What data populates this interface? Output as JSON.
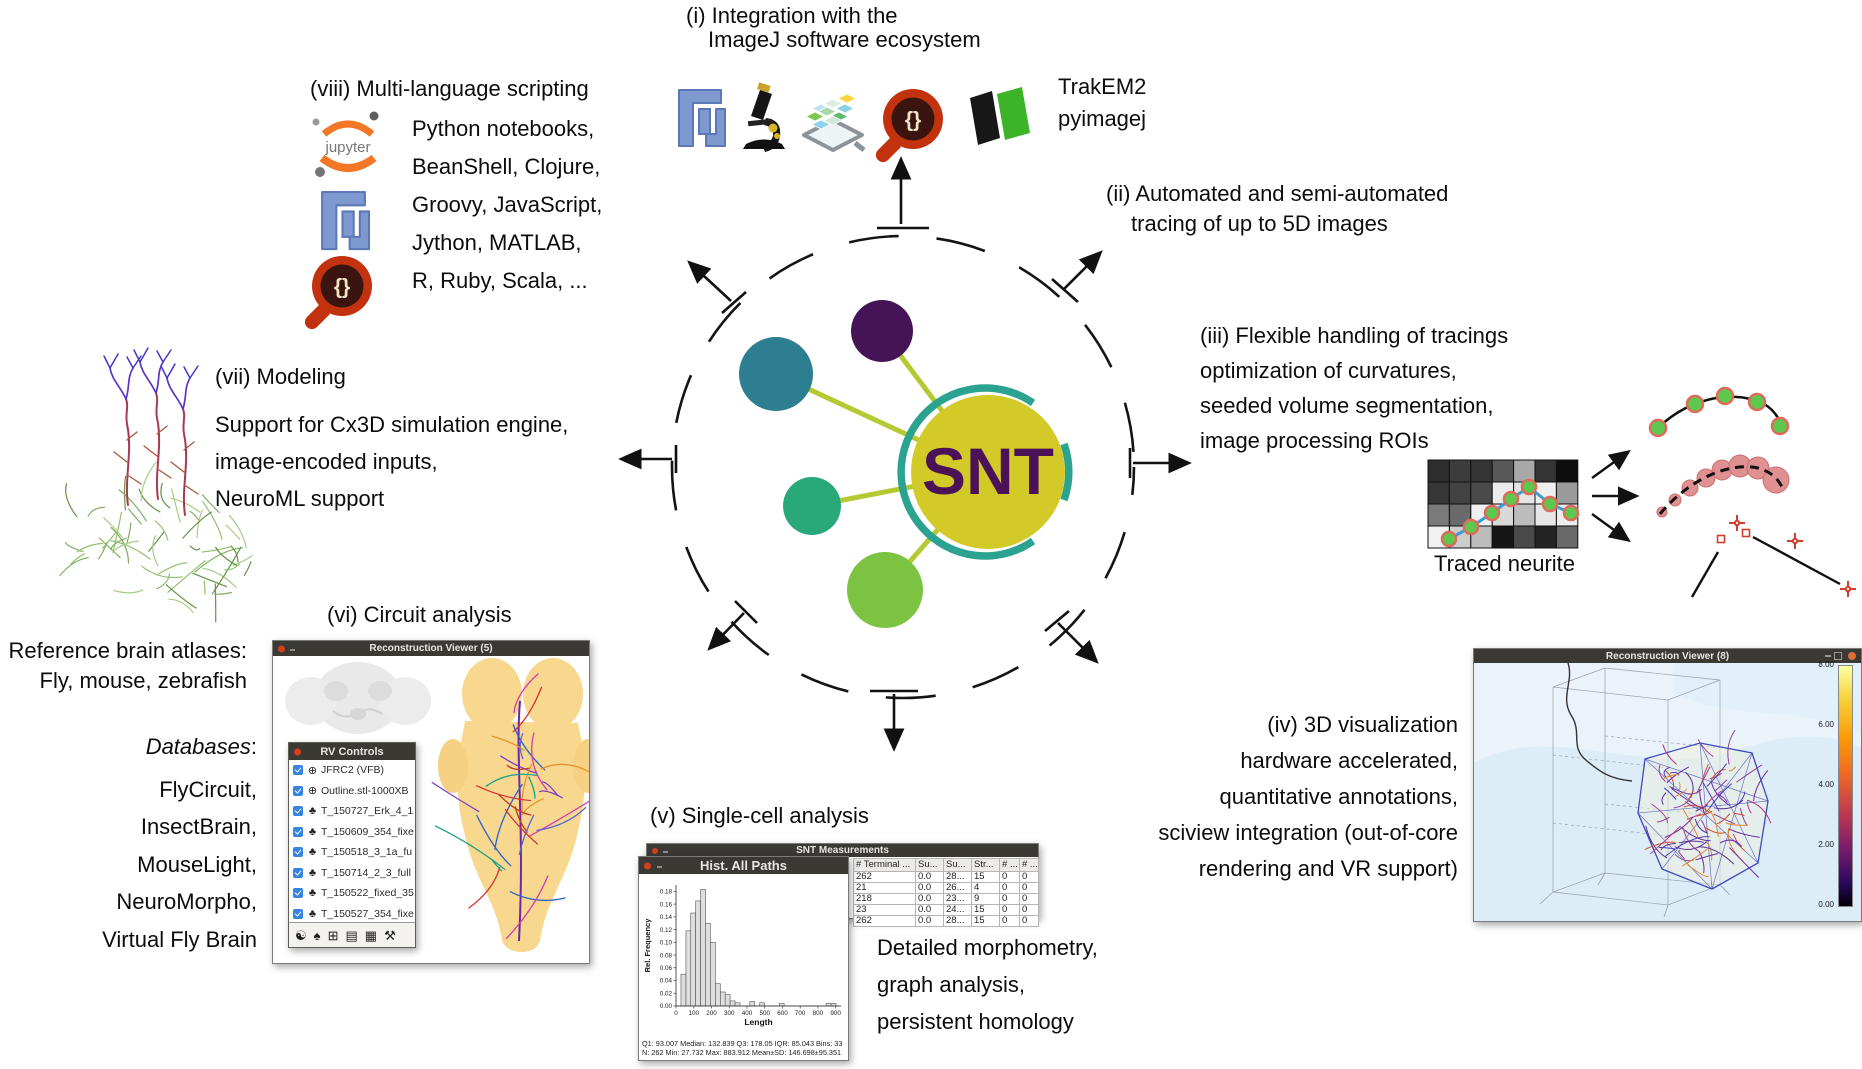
{
  "glyphs": {
    "script_braces": "{}"
  },
  "figure": {
    "center_label": "SNT",
    "i": {
      "line1": "(i) Integration with the",
      "line2": "ImageJ software ecosystem",
      "right_label1": "TrakEM2",
      "right_label2": "pyimagej"
    },
    "ii": {
      "line1": "(ii) Automated and semi-automated",
      "line2": "tracing of up to 5D images"
    },
    "iii": {
      "lines": [
        "(iii) Flexible handling of tracings",
        "optimization of curvatures,",
        "seeded volume segmentation,",
        "image processing ROIs"
      ],
      "caption": "Traced neurite",
      "grid_shades": [
        [
          "#2e2e2e",
          "#3c3c3c",
          "#343434",
          "#585858",
          "#a8a8a8",
          "#343434",
          "#0d0d0d"
        ],
        [
          "#363636",
          "#424242",
          "#4a4a4a",
          "#ececec",
          "#e4e4e4",
          "#efefef",
          "#9a9a9a"
        ],
        [
          "#7a7a7a",
          "#6a6a6a",
          "#f0f0f0",
          "#d8d8d8",
          "#bcbcbc",
          "#e6e6e6",
          "#ededed"
        ],
        [
          "#f1f1f1",
          "#cdcdcd",
          "#bcbcbc",
          "#161616",
          "#4a4a4a",
          "#242424",
          "#6a6a6a"
        ]
      ]
    },
    "iv": {
      "lines": [
        "(iv) 3D visualization",
        "hardware accelerated,",
        "quantitative annotations,",
        "sciview integration (out-of-core",
        "rendering and VR support)"
      ]
    },
    "v": {
      "title": "(v) Single-cell analysis",
      "lines": [
        "Detailed morphometry,",
        "graph analysis,",
        "persistent homology"
      ]
    },
    "vi": {
      "title": "(vi) Circuit analysis",
      "atlases": [
        "Reference brain atlases:",
        "Fly, mouse, zebrafish"
      ],
      "databases_label": "Databases",
      "databases_colon": ":",
      "databases": [
        "FlyCircuit,",
        "InsectBrain,",
        "MouseLight,",
        "NeuroMorpho,",
        "Virtual Fly Brain"
      ]
    },
    "vii": {
      "title": "(vii) Modeling",
      "lines": [
        "Support for Cx3D simulation engine,",
        "image-encoded inputs,",
        "NeuroML support"
      ]
    },
    "viii": {
      "title": "(viii) Multi-language scripting",
      "jupyter_label": "jupyter",
      "languages": [
        "Python notebooks,",
        "BeanShell, Clojure,",
        "Groovy, JavaScript,",
        "Jython, MATLAB,",
        "R, Ruby, Scala, ..."
      ]
    }
  },
  "windows": {
    "reconstruction_viewer_5": {
      "title": "Reconstruction Viewer (5)"
    },
    "rv_controls": {
      "title": "RV Controls",
      "items": [
        {
          "icon": "globe-icon",
          "label": "JFRC2 (VFB)",
          "checked": true
        },
        {
          "icon": "globe-icon",
          "label": "Outline.stl-1000XB",
          "checked": true
        },
        {
          "icon": "tree-icon",
          "label": "T_150727_Erk_4_1",
          "checked": true
        },
        {
          "icon": "tree-icon",
          "label": "T_150609_354_fixe",
          "checked": true
        },
        {
          "icon": "tree-icon",
          "label": "T_150518_3_1a_fu",
          "checked": true
        },
        {
          "icon": "tree-icon",
          "label": "T_150714_2_3_full",
          "checked": true
        },
        {
          "icon": "tree-icon",
          "label": "T_150522_fixed_35",
          "checked": true
        },
        {
          "icon": "tree-icon",
          "label": "T_150527_354_fixe",
          "checked": true
        }
      ],
      "toolbar_icons": [
        "masks-icon",
        "tree-icon",
        "box-icon",
        "stack-icon",
        "grid-icon",
        "wrench-icon"
      ]
    },
    "snt_measurements": {
      "title": "SNT Measurements",
      "columns": [
        "# Terminal ...",
        "Su...",
        "Su...",
        "Str...",
        "# ...",
        "# ..."
      ],
      "rows": [
        [
          "262",
          "0.0",
          "28...",
          "15",
          "0",
          "0"
        ],
        [
          "21",
          "0.0",
          "26...",
          "4",
          "0",
          "0"
        ],
        [
          "218",
          "0.0",
          "23...",
          "9",
          "0",
          "0"
        ],
        [
          "23",
          "0.0",
          "24...",
          "15",
          "0",
          "0"
        ],
        [
          "262",
          "0.0",
          "28...",
          "15",
          "0",
          "0"
        ]
      ]
    },
    "hist_all_paths": {
      "title": "Hist. All Paths",
      "footer_line1": "Q1: 93.007  Median: 132.839  Q3: 178.05  IQR: 85.043  Bins: 33",
      "footer_line2": "N: 262  Min: 27.732  Max: 883.912  Mean±SD: 146.698±95.351"
    },
    "reconstruction_viewer_8": {
      "title": "Reconstruction Viewer (8)",
      "colorbar_labels": [
        "8.00",
        "6.00",
        "4.00",
        "2.00",
        "0.00"
      ]
    }
  },
  "chart_data": {
    "type": "bar",
    "title": "Hist. All Paths",
    "xlabel": "Length",
    "ylabel": "Rel. Frequency",
    "xlim": [
      0,
      930
    ],
    "ylim": [
      0,
      0.19
    ],
    "xticks": [
      0,
      100,
      200,
      300,
      400,
      500,
      600,
      700,
      800,
      900
    ],
    "yticks": [
      0,
      0.02,
      0.04,
      0.06,
      0.08,
      0.1,
      0.12,
      0.14,
      0.16,
      0.18
    ],
    "grid": false,
    "bin_width": 27.7,
    "bins": [
      {
        "x": 28,
        "y": 0.05
      },
      {
        "x": 56,
        "y": 0.118
      },
      {
        "x": 83,
        "y": 0.146
      },
      {
        "x": 111,
        "y": 0.165
      },
      {
        "x": 139,
        "y": 0.183
      },
      {
        "x": 166,
        "y": 0.13
      },
      {
        "x": 194,
        "y": 0.1
      },
      {
        "x": 222,
        "y": 0.035
      },
      {
        "x": 250,
        "y": 0.022
      },
      {
        "x": 277,
        "y": 0.018
      },
      {
        "x": 305,
        "y": 0.008
      },
      {
        "x": 333,
        "y": 0.005
      },
      {
        "x": 416,
        "y": 0.007
      },
      {
        "x": 471,
        "y": 0.005
      },
      {
        "x": 582,
        "y": 0.004
      },
      {
        "x": 846,
        "y": 0.004
      },
      {
        "x": 874,
        "y": 0.004
      }
    ],
    "stats": {
      "Q1": 93.007,
      "Median": 132.839,
      "Q3": 178.05,
      "IQR": 85.043,
      "Bins": 33,
      "N": 262,
      "Min": 27.732,
      "Max": 883.912,
      "Mean": 146.698,
      "SD": 95.351
    }
  }
}
